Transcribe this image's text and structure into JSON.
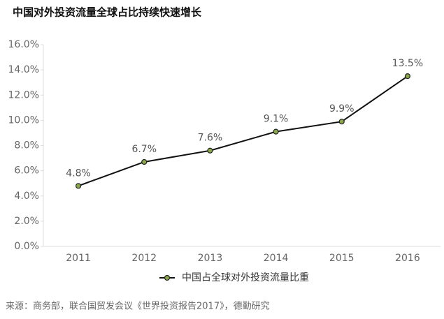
{
  "chart_data": {
    "type": "line",
    "title": "中国对外投资流量全球占比持续快速增长",
    "categories": [
      "2011",
      "2012",
      "2013",
      "2014",
      "2015",
      "2016"
    ],
    "series": [
      {
        "name": "中国占全球对外投资流量比重",
        "color": "#111111",
        "marker_color": "#8aa84a",
        "values": [
          4.8,
          6.7,
          7.6,
          9.1,
          9.9,
          13.5
        ],
        "value_labels": [
          "4.8%",
          "6.7%",
          "7.6%",
          "9.1%",
          "9.9%",
          "13.5%"
        ]
      }
    ],
    "ylim": [
      0,
      16
    ],
    "yticks": [
      {
        "value": 0,
        "label": "0.0%"
      },
      {
        "value": 2,
        "label": "2.0%"
      },
      {
        "value": 4,
        "label": "4.0%"
      },
      {
        "value": 6,
        "label": "6.0%"
      },
      {
        "value": 8,
        "label": "8.0%"
      },
      {
        "value": 10,
        "label": "10.0%"
      },
      {
        "value": 12,
        "label": "12.0%"
      },
      {
        "value": 14,
        "label": "14.0%"
      },
      {
        "value": 16,
        "label": "16.0%"
      }
    ],
    "grid": false,
    "legend_position": "bottom",
    "source": "来源：商务部，联合国贸发会议《世界投资报告2017》，德勤研究"
  }
}
